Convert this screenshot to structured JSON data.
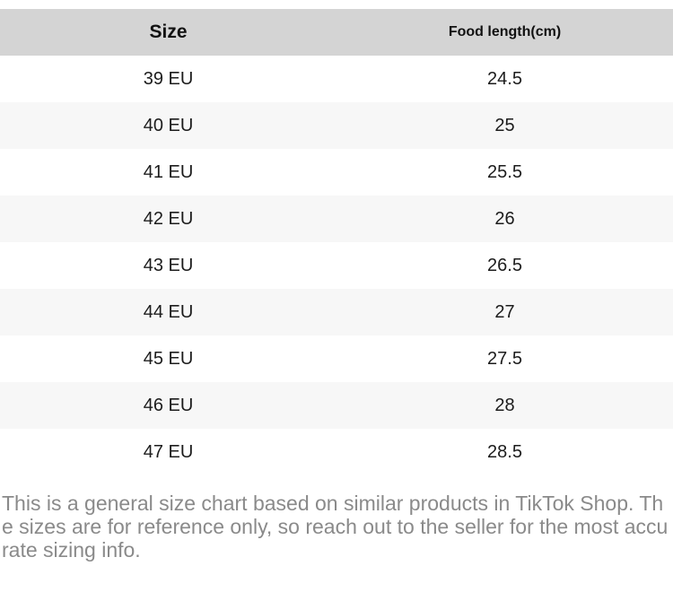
{
  "size_chart": {
    "columns": [
      {
        "label": "Size"
      },
      {
        "label": "Food length(cm)"
      }
    ],
    "rows": [
      {
        "size": "39 EU",
        "length": "24.5"
      },
      {
        "size": "40 EU",
        "length": "25"
      },
      {
        "size": "41 EU",
        "length": "25.5"
      },
      {
        "size": "42 EU",
        "length": "26"
      },
      {
        "size": "43 EU",
        "length": "26.5"
      },
      {
        "size": "44 EU",
        "length": "27"
      },
      {
        "size": "45 EU",
        "length": "27.5"
      },
      {
        "size": "46 EU",
        "length": "28"
      },
      {
        "size": "47 EU",
        "length": "28.5"
      }
    ]
  },
  "disclaimer": {
    "text": "This is a general size chart based on similar products in TikTok Shop. The sizes are for reference only, so reach out to the seller for the most accurate sizing info."
  },
  "colors": {
    "header_bg": "#d4d4d4",
    "row_stripe_bg": "#f7f7f7",
    "cell_text": "#1c1c1c",
    "disclaimer_text": "#8a8a8a"
  }
}
